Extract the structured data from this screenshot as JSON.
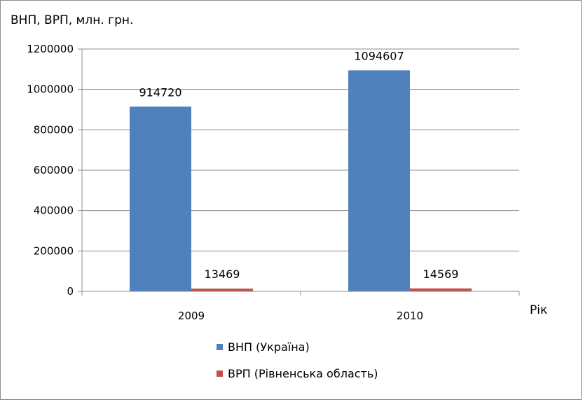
{
  "chart_data": {
    "type": "bar",
    "title": "ВНП, ВРП, млн. грн.",
    "xlabel": "Рік",
    "ylabel": "",
    "categories": [
      "2009",
      "2010"
    ],
    "series": [
      {
        "name": "ВНП (Україна)",
        "values": [
          914720,
          1094607
        ],
        "color": "#4F81BD"
      },
      {
        "name": "ВРП (Рівненська область)",
        "values": [
          13469,
          14569
        ],
        "color": "#C0504D"
      }
    ],
    "ylim": [
      0,
      1200000
    ],
    "yticks": [
      "0",
      "200000",
      "400000",
      "600000",
      "800000",
      "1000000",
      "1200000"
    ],
    "data_labels": [
      [
        "914720",
        "1094607"
      ],
      [
        "13469",
        "14569"
      ]
    ],
    "grid": true,
    "legend": "bottom"
  }
}
